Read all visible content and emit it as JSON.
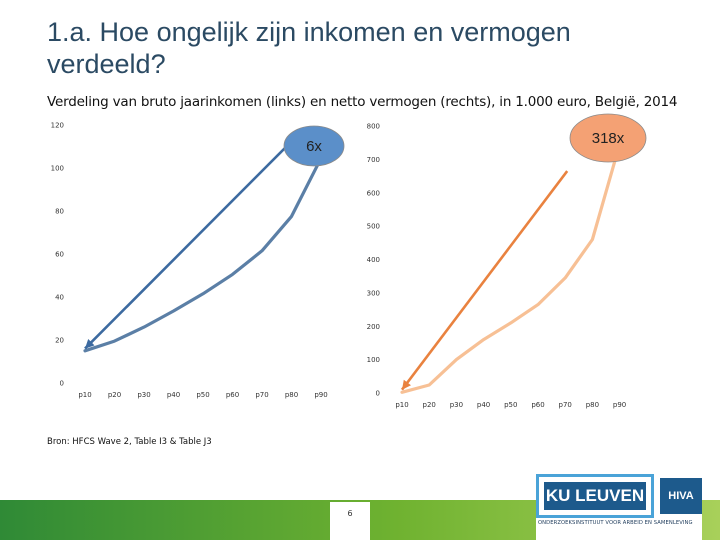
{
  "slide": {
    "title": "1.a. Hoe ongelijk zijn inkomen en vermogen verdeeld?",
    "subtitle": "Verdeling van bruto jaarinkomen (links) en netto vermogen (rechts), in 1.000 euro, België, 2014",
    "source": "Bron: HFCS Wave 2, Table I3 & Table J3",
    "page_number": "6",
    "logo_ku": "KU LEUVEN",
    "logo_hiva": "HIVA",
    "logo_caption": "ONDERZOEKSINSTITUUT VOOR ARBEID EN SAMENLEVING"
  },
  "chart_data": [
    {
      "type": "line",
      "title": "Bruto jaarinkomen",
      "categories": [
        "p10",
        "p20",
        "p30",
        "p40",
        "p50",
        "p60",
        "p70",
        "p80",
        "p90"
      ],
      "series": [
        {
          "name": "Bruto jaarinkomen",
          "values": [
            15,
            19.5,
            26,
            33.5,
            41.5,
            50.5,
            61.5,
            77.5,
            104.5
          ],
          "color": "#5b7fa6"
        }
      ],
      "ylim": [
        0,
        120
      ],
      "yticks": [
        0,
        20,
        40,
        60,
        80,
        100,
        120
      ],
      "annotation": {
        "text": "6x",
        "color": "#5b8fc9",
        "arrow_color": "#3c6aa0"
      },
      "arrow_from": [
        "p80",
        117
      ],
      "arrow_to": [
        "p10",
        16
      ]
    },
    {
      "type": "line",
      "title": "Netto vermogen",
      "categories": [
        "p10",
        "p20",
        "p30",
        "p40",
        "p50",
        "p60",
        "p70",
        "p80",
        "p90"
      ],
      "series": [
        {
          "name": "Netto vermogen",
          "values": [
            2,
            24,
            100,
            160,
            210,
            265,
            345,
            460,
            745
          ],
          "color": "#f7c095"
        }
      ],
      "ylim": [
        0,
        800
      ],
      "yticks": [
        0,
        100,
        200,
        300,
        400,
        500,
        600,
        700,
        800
      ],
      "annotation": {
        "text": "318x",
        "color": "#f4a174",
        "arrow_color": "#e9823f"
      },
      "arrow_from": [
        "p70",
        665
      ],
      "arrow_to": [
        "p10",
        10
      ]
    }
  ]
}
